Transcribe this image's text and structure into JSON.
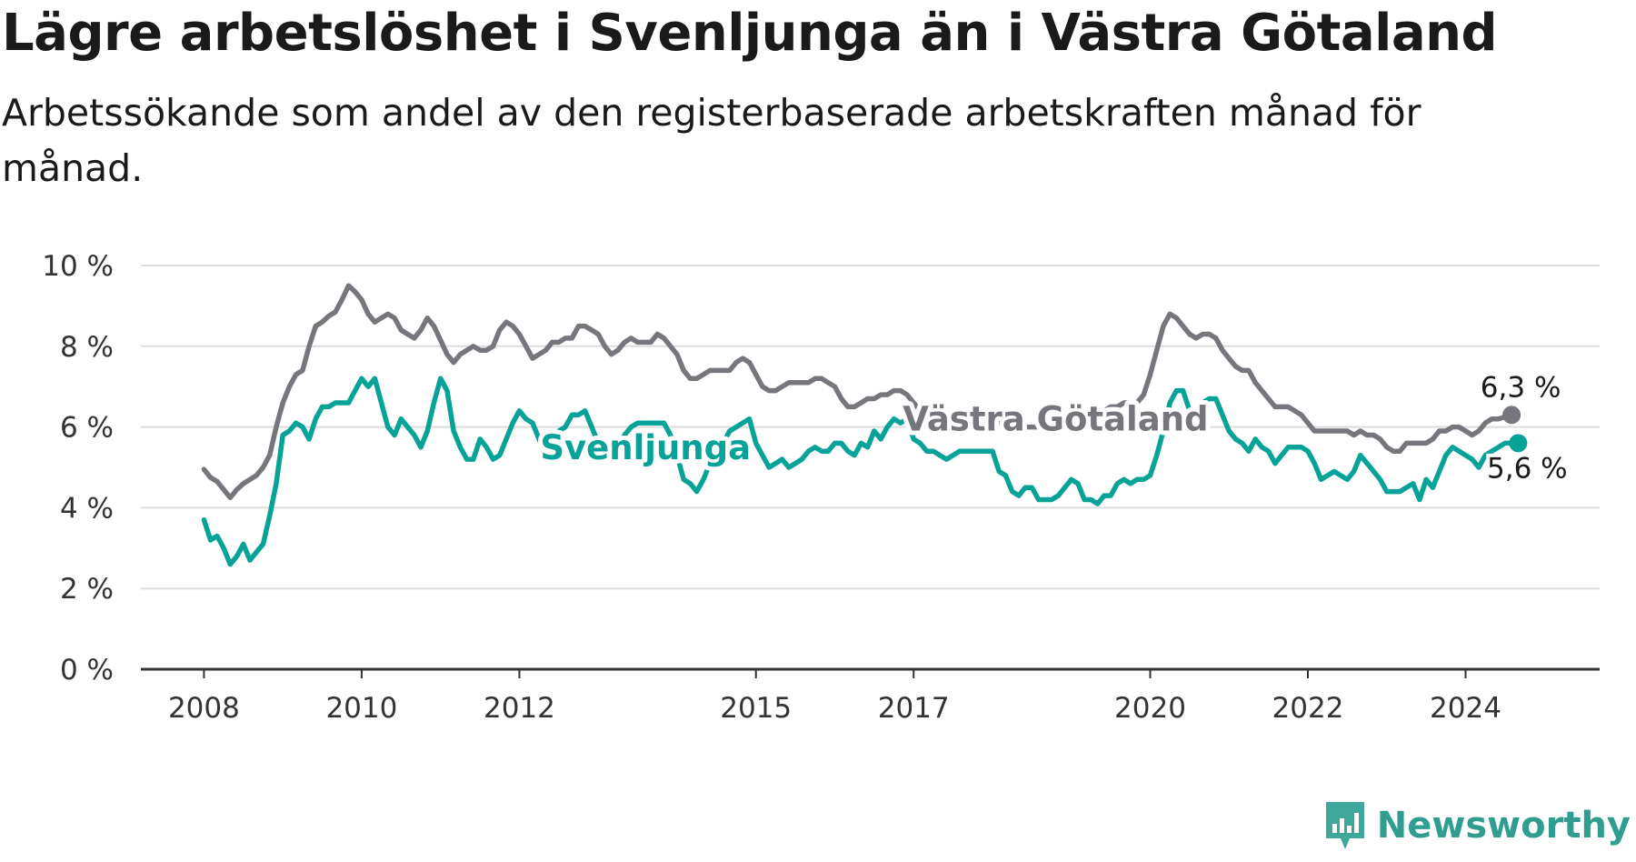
{
  "title": "Lägre arbetslöshet i Svenljunga än i Västra Götaland",
  "subtitle": "Arbetssökande som andel av den registerbaserade arbetskraften månad för månad.",
  "brand": {
    "name": "Newsworthy",
    "icon": "newsworthy-chart-icon",
    "color": "#3fa89a"
  },
  "chart_data": {
    "type": "line",
    "title": "Lägre arbetslöshet i Svenljunga än i Västra Götaland",
    "subtitle": "Arbetssökande som andel av den registerbaserade arbetskraften månad för månad.",
    "xlabel": "",
    "ylabel": "",
    "x_start": 2008.0,
    "x_step": 0.0833333,
    "xlim": [
      2007.2,
      2025.7
    ],
    "ylim": [
      0,
      10
    ],
    "x_ticks": [
      2008,
      2010,
      2012,
      2015,
      2017,
      2020,
      2022,
      2024
    ],
    "y_ticks": [
      {
        "value": 0,
        "label": "0 %"
      },
      {
        "value": 2,
        "label": "2 %"
      },
      {
        "value": 4,
        "label": "4 %"
      },
      {
        "value": 6,
        "label": "6 %"
      },
      {
        "value": 8,
        "label": "8 %"
      },
      {
        "value": 10,
        "label": "10 %"
      }
    ],
    "grid": true,
    "series": [
      {
        "name": "Västra Götaland",
        "color": "#77767c",
        "end_label": "6,3 %",
        "values": [
          4.95,
          4.75,
          4.65,
          4.45,
          4.25,
          4.45,
          4.6,
          4.7,
          4.8,
          5.0,
          5.3,
          6.0,
          6.6,
          7.0,
          7.3,
          7.4,
          8.0,
          8.5,
          8.6,
          8.75,
          8.85,
          9.15,
          9.5,
          9.35,
          9.15,
          8.8,
          8.6,
          8.7,
          8.8,
          8.7,
          8.4,
          8.3,
          8.2,
          8.4,
          8.7,
          8.5,
          8.15,
          7.8,
          7.6,
          7.8,
          7.9,
          8.0,
          7.9,
          7.9,
          8.0,
          8.4,
          8.6,
          8.5,
          8.3,
          8.0,
          7.7,
          7.8,
          7.9,
          8.1,
          8.1,
          8.2,
          8.2,
          8.5,
          8.5,
          8.4,
          8.3,
          8.0,
          7.8,
          7.9,
          8.1,
          8.2,
          8.1,
          8.1,
          8.1,
          8.3,
          8.2,
          8.0,
          7.8,
          7.4,
          7.2,
          7.2,
          7.3,
          7.4,
          7.4,
          7.4,
          7.4,
          7.6,
          7.7,
          7.6,
          7.3,
          7.0,
          6.9,
          6.9,
          7.0,
          7.1,
          7.1,
          7.1,
          7.1,
          7.2,
          7.2,
          7.1,
          7.0,
          6.7,
          6.5,
          6.5,
          6.6,
          6.7,
          6.7,
          6.8,
          6.8,
          6.9,
          6.9,
          6.8,
          6.6,
          6.4,
          6.2,
          6.0,
          6.0,
          6.0,
          6.1,
          6.2,
          6.3,
          6.3,
          6.3,
          6.2,
          6.2,
          6.1,
          6.1,
          6.0,
          6.0,
          6.0,
          6.0,
          6.0,
          6.1,
          6.1,
          6.1,
          6.2,
          6.2,
          6.2,
          6.2,
          6.3,
          6.3,
          6.4,
          6.5,
          6.5,
          6.6,
          6.6,
          6.6,
          6.8,
          7.3,
          7.9,
          8.5,
          8.8,
          8.7,
          8.5,
          8.3,
          8.2,
          8.3,
          8.3,
          8.2,
          7.9,
          7.7,
          7.5,
          7.4,
          7.4,
          7.1,
          6.9,
          6.7,
          6.5,
          6.5,
          6.5,
          6.4,
          6.3,
          6.1,
          5.9,
          5.9,
          5.9,
          5.9,
          5.9,
          5.9,
          5.8,
          5.9,
          5.8,
          5.8,
          5.7,
          5.5,
          5.4,
          5.4,
          5.6,
          5.6,
          5.6,
          5.6,
          5.7,
          5.9,
          5.9,
          6.0,
          6.0,
          5.9,
          5.8,
          5.9,
          6.1,
          6.2,
          6.2,
          6.25,
          6.3
        ]
      },
      {
        "name": "Svenljunga",
        "color": "#08a398",
        "end_label": "5,6 %",
        "values": [
          3.7,
          3.2,
          3.3,
          3.0,
          2.6,
          2.8,
          3.1,
          2.7,
          2.9,
          3.1,
          3.8,
          4.6,
          5.8,
          5.9,
          6.1,
          6.0,
          5.7,
          6.2,
          6.5,
          6.5,
          6.6,
          6.6,
          6.6,
          6.9,
          7.2,
          7.0,
          7.2,
          6.6,
          6.0,
          5.8,
          6.2,
          6.0,
          5.8,
          5.5,
          5.9,
          6.6,
          7.2,
          6.9,
          5.9,
          5.5,
          5.2,
          5.2,
          5.7,
          5.5,
          5.2,
          5.3,
          5.7,
          6.1,
          6.4,
          6.2,
          6.1,
          5.7,
          5.3,
          5.6,
          5.9,
          6.0,
          6.3,
          6.3,
          6.4,
          6.0,
          5.6,
          5.4,
          5.3,
          5.4,
          5.8,
          6.0,
          6.1,
          6.1,
          6.1,
          6.1,
          6.1,
          5.8,
          5.3,
          4.7,
          4.6,
          4.4,
          4.7,
          5.1,
          5.4,
          5.6,
          5.9,
          6.0,
          6.1,
          6.2,
          5.6,
          5.3,
          5.0,
          5.1,
          5.2,
          5.0,
          5.1,
          5.2,
          5.4,
          5.5,
          5.4,
          5.4,
          5.6,
          5.6,
          5.4,
          5.3,
          5.6,
          5.5,
          5.9,
          5.7,
          6.0,
          6.2,
          6.1,
          6.2,
          5.7,
          5.6,
          5.4,
          5.4,
          5.3,
          5.2,
          5.3,
          5.4,
          5.4,
          5.4,
          5.4,
          5.4,
          5.4,
          4.9,
          4.8,
          4.4,
          4.3,
          4.5,
          4.5,
          4.2,
          4.2,
          4.2,
          4.3,
          4.5,
          4.7,
          4.6,
          4.2,
          4.2,
          4.1,
          4.3,
          4.3,
          4.6,
          4.7,
          4.6,
          4.7,
          4.7,
          4.8,
          5.3,
          5.9,
          6.6,
          6.9,
          6.9,
          6.4,
          6.4,
          6.6,
          6.7,
          6.7,
          6.3,
          5.9,
          5.7,
          5.6,
          5.4,
          5.7,
          5.5,
          5.4,
          5.1,
          5.3,
          5.5,
          5.5,
          5.5,
          5.4,
          5.1,
          4.7,
          4.8,
          4.9,
          4.8,
          4.7,
          4.9,
          5.3,
          5.1,
          4.9,
          4.7,
          4.4,
          4.4,
          4.4,
          4.5,
          4.6,
          4.2,
          4.7,
          4.5,
          4.9,
          5.3,
          5.5,
          5.4,
          5.3,
          5.2,
          5.0,
          5.3,
          5.4,
          5.5,
          5.6,
          5.6,
          5.6
        ]
      }
    ],
    "annotations": [
      {
        "text": "Svenljunga",
        "series": "Svenljunga",
        "x": 2013.6,
        "y": 5.5
      },
      {
        "text": "Västra Götaland",
        "series": "Västra Götaland",
        "x": 2018.8,
        "y": 6.2
      }
    ]
  }
}
